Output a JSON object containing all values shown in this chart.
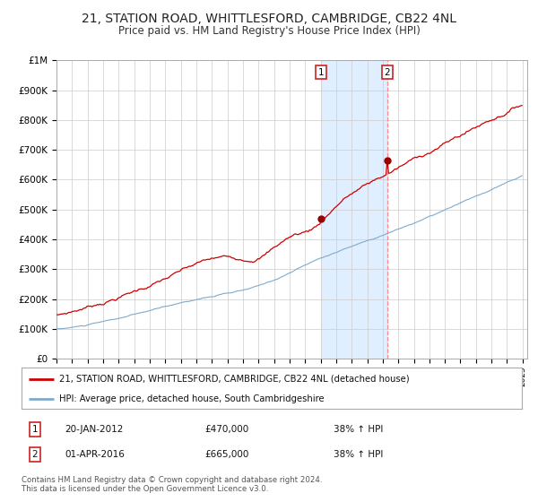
{
  "title": "21, STATION ROAD, WHITTLESFORD, CAMBRIDGE, CB22 4NL",
  "subtitle": "Price paid vs. HM Land Registry's House Price Index (HPI)",
  "title_fontsize": 10,
  "subtitle_fontsize": 8.5,
  "background_color": "#ffffff",
  "plot_bg_color": "#ffffff",
  "grid_color": "#cccccc",
  "red_line_color": "#cc0000",
  "blue_line_color": "#7faacc",
  "highlight_color": "#ddeeff",
  "dashed_line_color": "#ff8888",
  "legend_label_red": "21, STATION ROAD, WHITTLESFORD, CAMBRIDGE, CB22 4NL (detached house)",
  "legend_label_blue": "HPI: Average price, detached house, South Cambridgeshire",
  "info1_num": "1",
  "info1_date": "20-JAN-2012",
  "info1_price": "£470,000",
  "info1_hpi": "38% ↑ HPI",
  "info2_num": "2",
  "info2_date": "01-APR-2016",
  "info2_price": "£665,000",
  "info2_hpi": "38% ↑ HPI",
  "footer": "Contains HM Land Registry data © Crown copyright and database right 2024.\nThis data is licensed under the Open Government Licence v3.0.",
  "ylim": [
    0,
    1000000
  ],
  "yticks": [
    0,
    100000,
    200000,
    300000,
    400000,
    500000,
    600000,
    700000,
    800000,
    900000,
    1000000
  ],
  "ytick_labels": [
    "£0",
    "£100K",
    "£200K",
    "£300K",
    "£400K",
    "£500K",
    "£600K",
    "£700K",
    "£800K",
    "£900K",
    "£1M"
  ],
  "start_year": 1995,
  "end_year": 2025
}
